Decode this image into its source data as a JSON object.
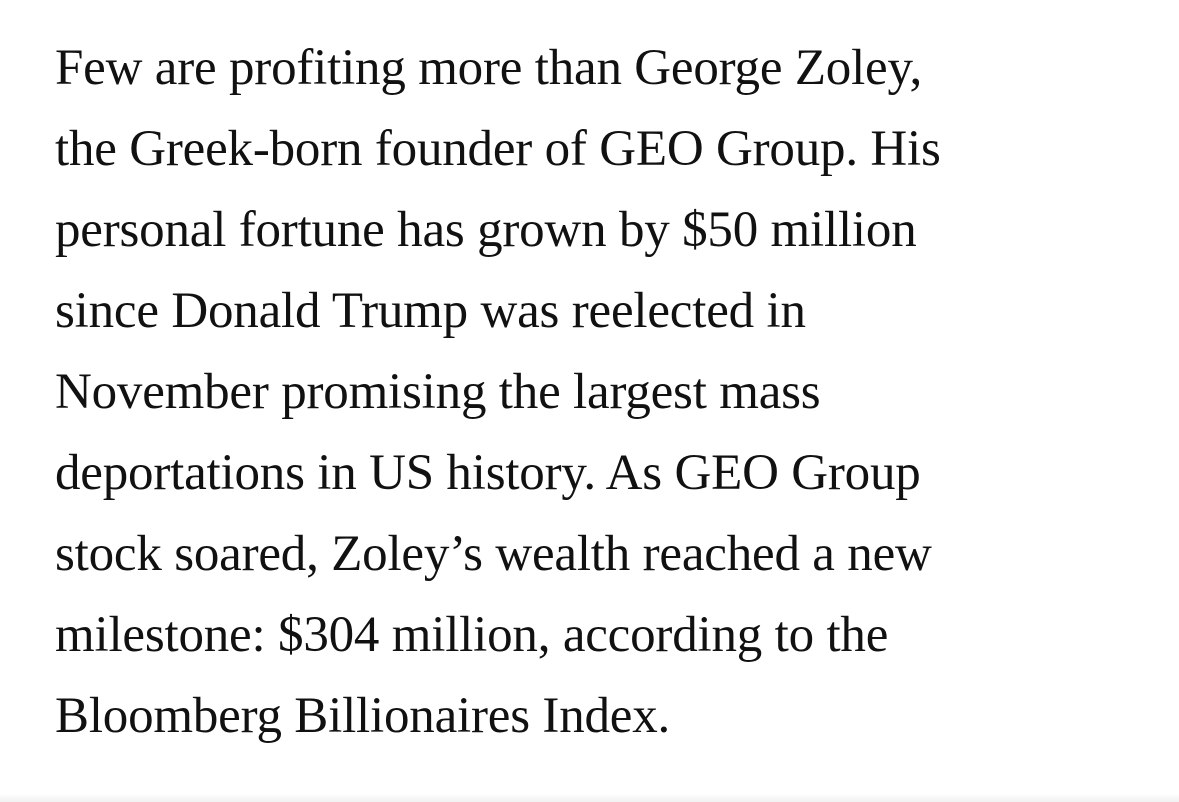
{
  "paragraph": {
    "lines": [
      "Few are profiting more than George Zoley,",
      "the Greek-born founder of GEO Group. His",
      "personal fortune has grown by $50 million",
      "since Donald Trump was reelected in",
      "November promising the largest mass",
      "deportations in US history. As GEO Group",
      "stock soared, Zoley’s wealth reached a new",
      "milestone: $304 million, according to the",
      "Bloomberg Billionaires Index."
    ]
  }
}
